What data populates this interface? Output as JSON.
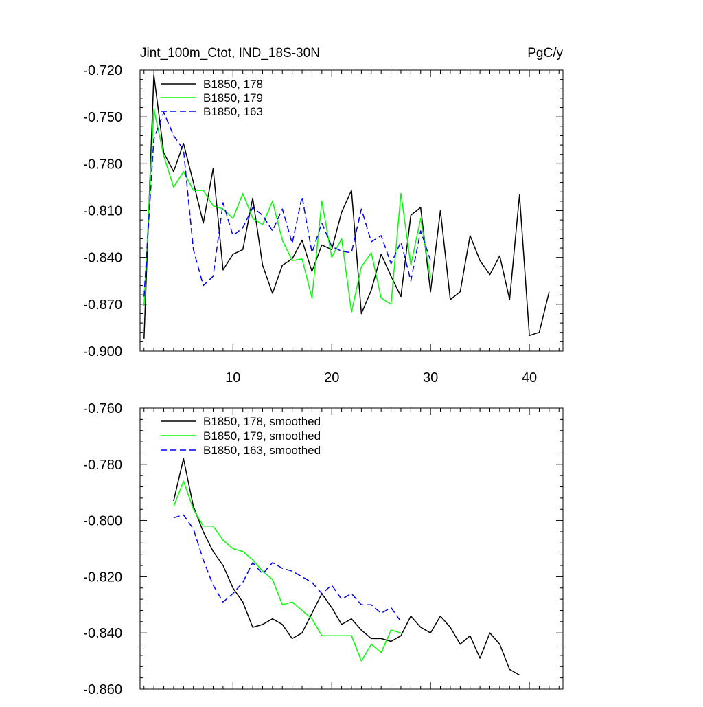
{
  "chart_data": [
    {
      "type": "line",
      "title_left": "Jint_100m_Ctot, IND_18S-30N",
      "title_right": "PgC/y",
      "xlabel": "",
      "ylabel": "",
      "xlim": [
        0.6,
        43.4
      ],
      "ylim": [
        -0.9,
        -0.72
      ],
      "yticks": [
        -0.72,
        -0.75,
        -0.78,
        -0.81,
        -0.84,
        -0.87,
        -0.9
      ],
      "ytick_labels": [
        "-0.720",
        "-0.750",
        "-0.780",
        "-0.810",
        "-0.840",
        "-0.870",
        "-0.900"
      ],
      "xticks": [
        10,
        20,
        30,
        40
      ],
      "xtick_labels": [
        "10",
        "20",
        "30",
        "40"
      ],
      "legend_position": "top-left",
      "series": [
        {
          "name": "B1850, 178",
          "color": "#000000",
          "dash": "solid",
          "x": [
            1,
            2,
            3,
            4,
            5,
            6,
            7,
            8,
            9,
            10,
            11,
            12,
            13,
            14,
            15,
            16,
            17,
            18,
            19,
            20,
            21,
            22,
            23,
            24,
            25,
            26,
            27,
            28,
            29,
            30,
            31,
            32,
            33,
            34,
            35,
            36,
            37,
            38,
            39,
            40,
            41,
            42
          ],
          "values": [
            -0.892,
            -0.723,
            -0.773,
            -0.785,
            -0.767,
            -0.792,
            -0.818,
            -0.783,
            -0.848,
            -0.838,
            -0.835,
            -0.802,
            -0.845,
            -0.863,
            -0.845,
            -0.841,
            -0.829,
            -0.849,
            -0.832,
            -0.835,
            -0.811,
            -0.797,
            -0.876,
            -0.861,
            -0.838,
            -0.852,
            -0.865,
            -0.813,
            -0.808,
            -0.862,
            -0.81,
            -0.867,
            -0.862,
            -0.826,
            -0.842,
            -0.851,
            -0.839,
            -0.867,
            -0.8,
            -0.89,
            -0.888,
            -0.862
          ]
        },
        {
          "name": "B1850, 179",
          "color": "#00ff00",
          "dash": "solid",
          "x": [
            1,
            2,
            3,
            4,
            5,
            6,
            7,
            8,
            9,
            10,
            11,
            12,
            13,
            14,
            15,
            16,
            17,
            18,
            19,
            20,
            21,
            22,
            23,
            24,
            25,
            26,
            27,
            28,
            29,
            30
          ],
          "values": [
            -0.871,
            -0.745,
            -0.775,
            -0.795,
            -0.785,
            -0.797,
            -0.797,
            -0.807,
            -0.809,
            -0.815,
            -0.799,
            -0.815,
            -0.819,
            -0.804,
            -0.829,
            -0.842,
            -0.841,
            -0.866,
            -0.804,
            -0.84,
            -0.828,
            -0.875,
            -0.846,
            -0.837,
            -0.866,
            -0.87,
            -0.799,
            -0.845,
            -0.815,
            -0.853
          ]
        },
        {
          "name": "B1850, 163",
          "color": "#0000ff",
          "dash": "dashed",
          "x": [
            1,
            2,
            3,
            4,
            5,
            6,
            7,
            8,
            9,
            10,
            11,
            12,
            13,
            14,
            15,
            16,
            17,
            18,
            19,
            20,
            21,
            22,
            23,
            24,
            25,
            26,
            27,
            28,
            29,
            30
          ],
          "values": [
            -0.865,
            -0.764,
            -0.747,
            -0.762,
            -0.771,
            -0.835,
            -0.858,
            -0.852,
            -0.805,
            -0.826,
            -0.821,
            -0.808,
            -0.813,
            -0.823,
            -0.809,
            -0.831,
            -0.801,
            -0.837,
            -0.818,
            -0.833,
            -0.836,
            -0.837,
            -0.809,
            -0.83,
            -0.826,
            -0.844,
            -0.83,
            -0.855,
            -0.823,
            -0.842
          ]
        }
      ]
    },
    {
      "type": "line",
      "xlabel": "",
      "ylabel": "",
      "xlim": [
        0.6,
        43.4
      ],
      "ylim": [
        -0.86,
        -0.76
      ],
      "yticks": [
        -0.76,
        -0.78,
        -0.8,
        -0.82,
        -0.84,
        -0.86
      ],
      "ytick_labels": [
        "-0.760",
        "-0.780",
        "-0.800",
        "-0.820",
        "-0.840",
        "-0.860"
      ],
      "xticks": [
        10,
        20,
        30,
        40
      ],
      "legend_position": "top-left",
      "series": [
        {
          "name": "B1850, 178, smoothed",
          "color": "#000000",
          "dash": "solid",
          "x": [
            4,
            5,
            6,
            7,
            8,
            9,
            10,
            11,
            12,
            13,
            14,
            15,
            16,
            17,
            18,
            19,
            20,
            21,
            22,
            23,
            24,
            25,
            26,
            27,
            28,
            29,
            30,
            31,
            32,
            33,
            34,
            35,
            36,
            37,
            38,
            39
          ],
          "values": [
            -0.793,
            -0.778,
            -0.795,
            -0.804,
            -0.811,
            -0.816,
            -0.824,
            -0.829,
            -0.838,
            -0.837,
            -0.835,
            -0.837,
            -0.842,
            -0.84,
            -0.833,
            -0.826,
            -0.831,
            -0.837,
            -0.835,
            -0.839,
            -0.842,
            -0.842,
            -0.843,
            -0.841,
            -0.834,
            -0.838,
            -0.84,
            -0.834,
            -0.838,
            -0.844,
            -0.841,
            -0.849,
            -0.84,
            -0.844,
            -0.853,
            -0.855
          ]
        },
        {
          "name": "B1850, 179, smoothed",
          "color": "#00ff00",
          "dash": "solid",
          "x": [
            4,
            5,
            6,
            7,
            8,
            9,
            10,
            11,
            12,
            13,
            14,
            15,
            16,
            17,
            18,
            19,
            20,
            21,
            22,
            23,
            24,
            25,
            26,
            27
          ],
          "values": [
            -0.795,
            -0.786,
            -0.796,
            -0.802,
            -0.802,
            -0.807,
            -0.81,
            -0.811,
            -0.814,
            -0.818,
            -0.821,
            -0.83,
            -0.829,
            -0.832,
            -0.835,
            -0.841,
            -0.841,
            -0.841,
            -0.841,
            -0.85,
            -0.844,
            -0.847,
            -0.839,
            -0.84
          ]
        },
        {
          "name": "B1850, 163, smoothed",
          "color": "#0000ff",
          "dash": "dashed",
          "x": [
            4,
            5,
            6,
            7,
            8,
            9,
            10,
            11,
            12,
            13,
            14,
            15,
            16,
            17,
            18,
            19,
            20,
            21,
            22,
            23,
            24,
            25,
            26,
            27
          ],
          "values": [
            -0.799,
            -0.798,
            -0.803,
            -0.814,
            -0.823,
            -0.829,
            -0.826,
            -0.822,
            -0.815,
            -0.819,
            -0.815,
            -0.817,
            -0.818,
            -0.82,
            -0.822,
            -0.826,
            -0.823,
            -0.828,
            -0.826,
            -0.83,
            -0.83,
            -0.833,
            -0.831,
            -0.836
          ]
        }
      ]
    }
  ]
}
